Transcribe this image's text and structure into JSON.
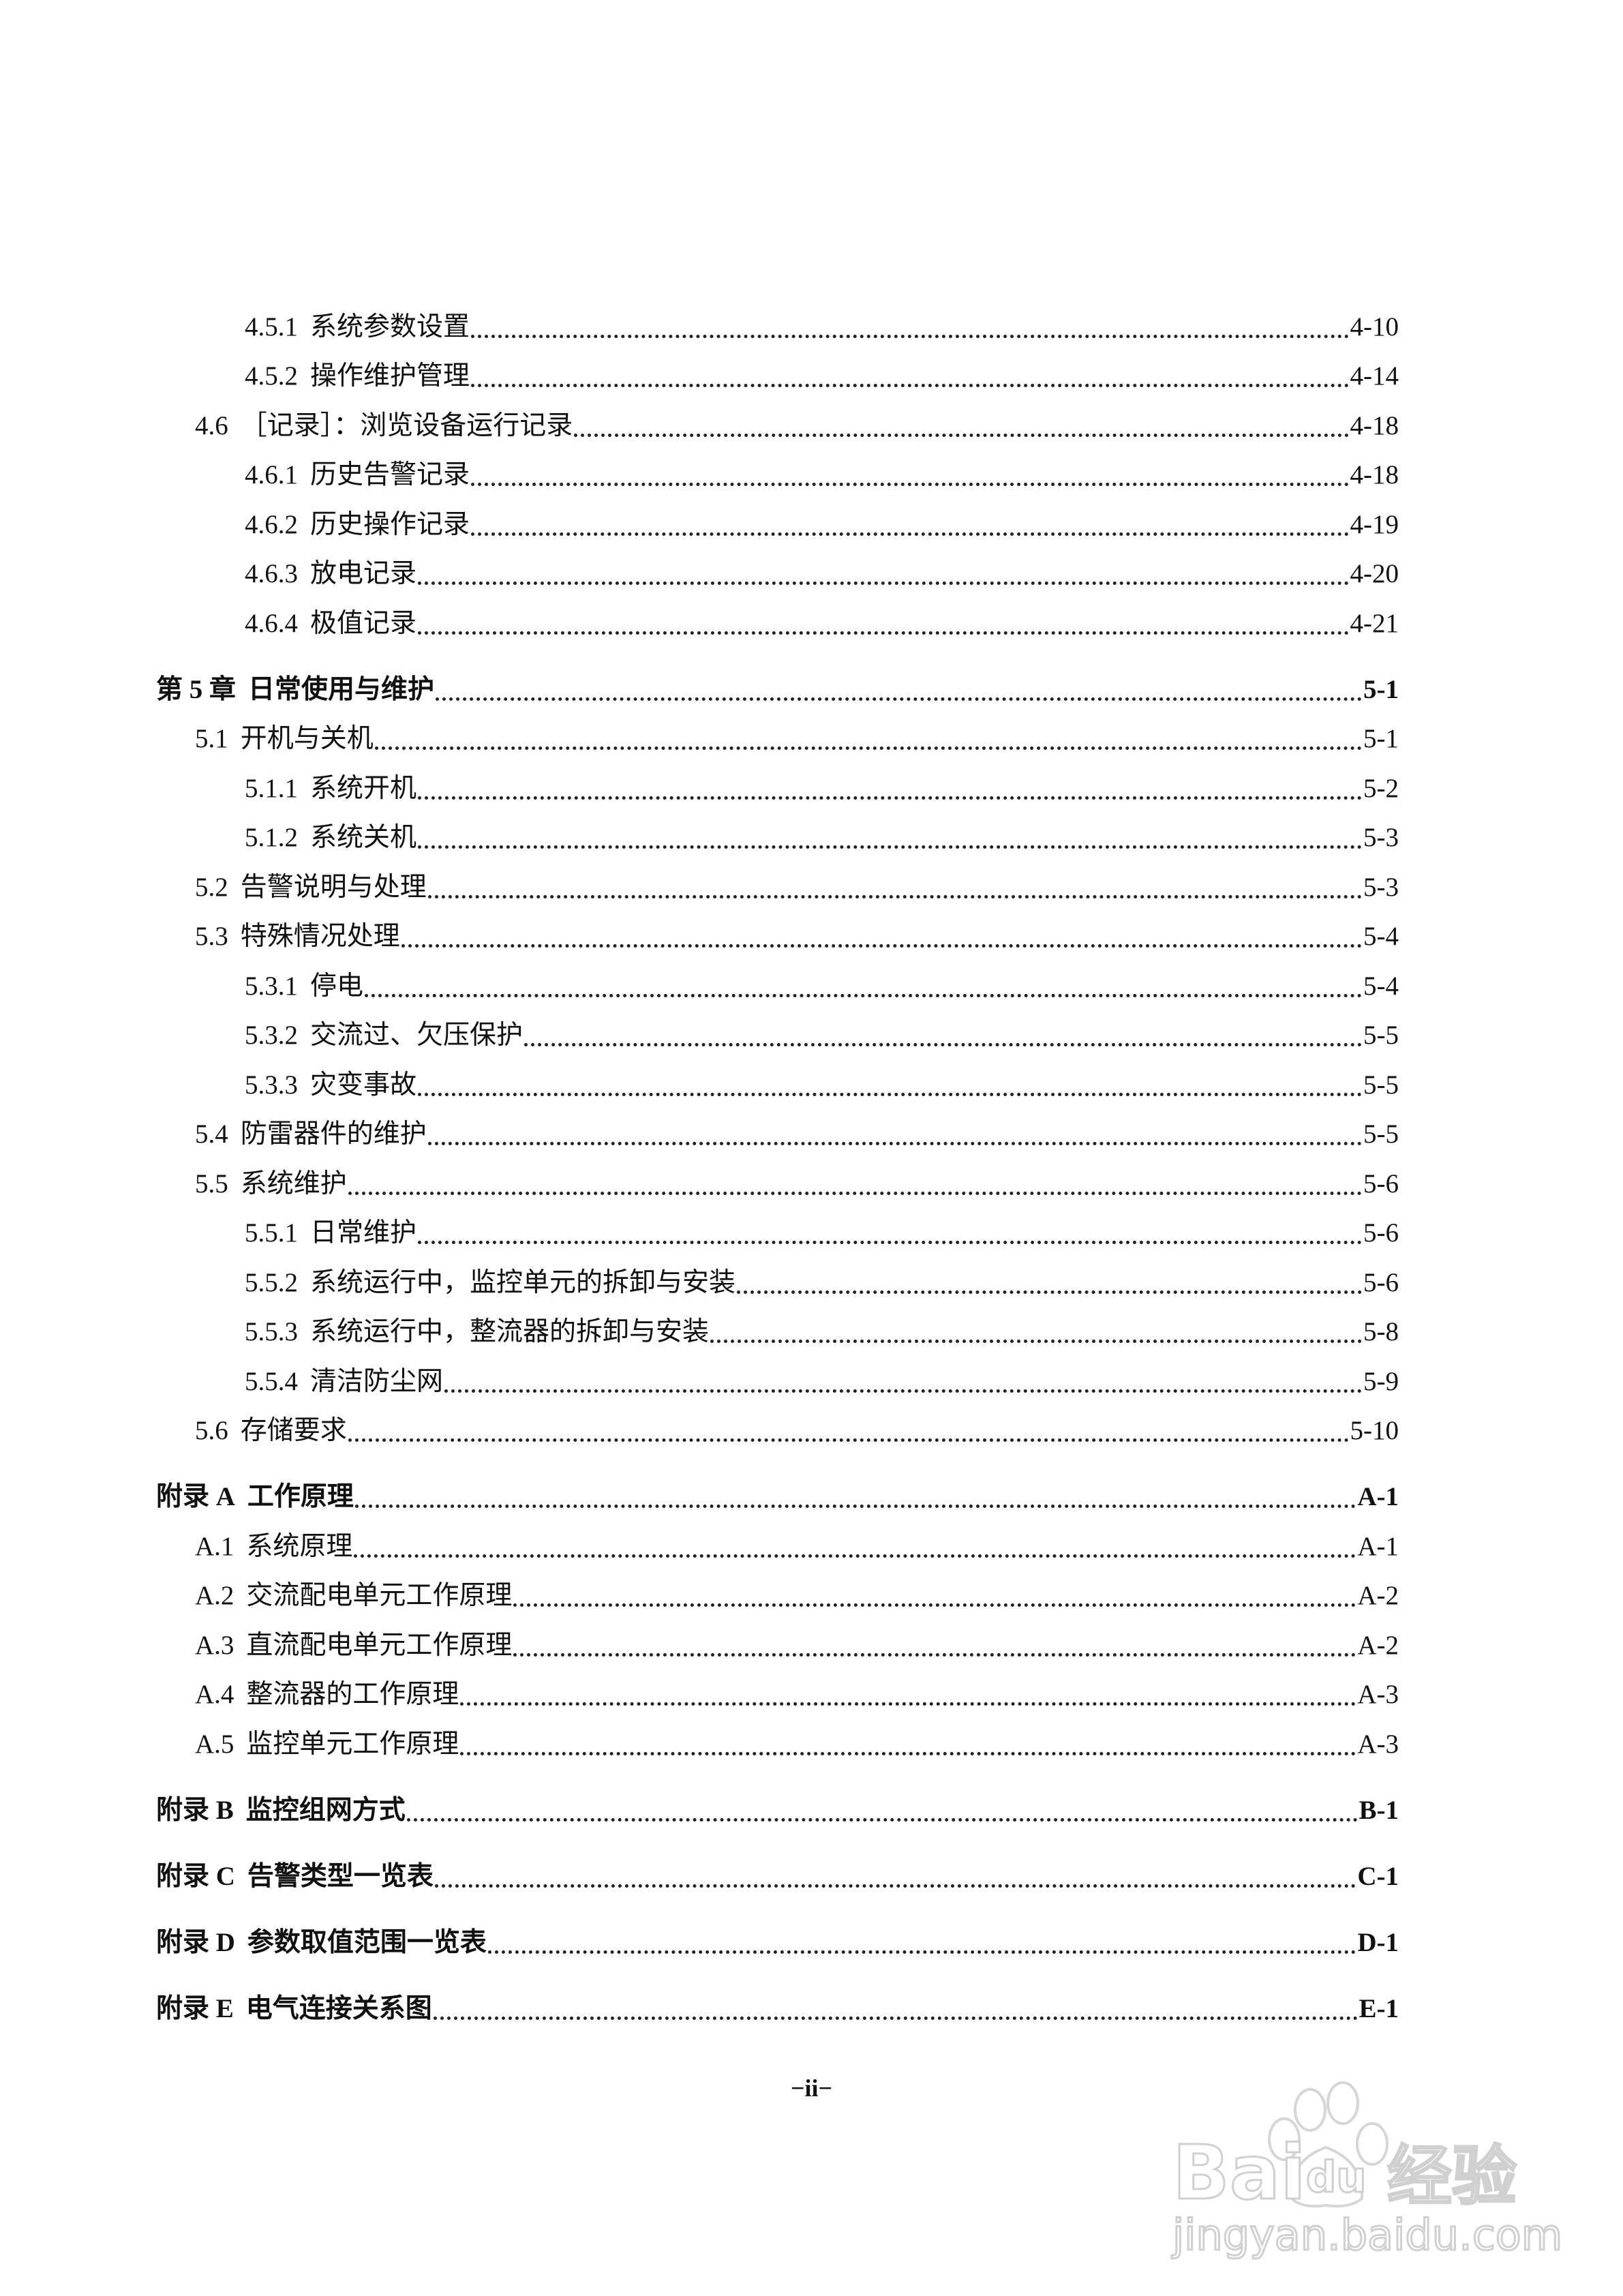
{
  "toc": [
    {
      "level": 3,
      "num": "4.5.1",
      "title": "系统参数设置",
      "page": "4-10"
    },
    {
      "level": 3,
      "num": "4.5.2",
      "title": "操作维护管理",
      "page": "4-14"
    },
    {
      "level": 2,
      "num": "4.6",
      "title": "［记录］：浏览设备运行记录",
      "page": "4-18"
    },
    {
      "level": 3,
      "num": "4.6.1",
      "title": "历史告警记录",
      "page": "4-18"
    },
    {
      "level": 3,
      "num": "4.6.2",
      "title": "历史操作记录",
      "page": "4-19"
    },
    {
      "level": 3,
      "num": "4.6.3",
      "title": "放电记录",
      "page": "4-20"
    },
    {
      "level": 3,
      "num": "4.6.4",
      "title": "极值记录",
      "page": "4-21"
    },
    {
      "level": 1,
      "num": "第 5 章",
      "title": "日常使用与维护",
      "page": "5-1"
    },
    {
      "level": 2,
      "num": "5.1",
      "title": "开机与关机",
      "page": "5-1"
    },
    {
      "level": 3,
      "num": "5.1.1",
      "title": "系统开机",
      "page": "5-2"
    },
    {
      "level": 3,
      "num": "5.1.2",
      "title": "系统关机",
      "page": "5-3"
    },
    {
      "level": 2,
      "num": "5.2",
      "title": "告警说明与处理",
      "page": "5-3"
    },
    {
      "level": 2,
      "num": "5.3",
      "title": "特殊情况处理",
      "page": "5-4"
    },
    {
      "level": 3,
      "num": "5.3.1",
      "title": "停电",
      "page": "5-4"
    },
    {
      "level": 3,
      "num": "5.3.2",
      "title": "交流过、欠压保护",
      "page": "5-5"
    },
    {
      "level": 3,
      "num": "5.3.3",
      "title": "灾变事故",
      "page": "5-5"
    },
    {
      "level": 2,
      "num": "5.4",
      "title": "防雷器件的维护",
      "page": "5-5"
    },
    {
      "level": 2,
      "num": "5.5",
      "title": "系统维护",
      "page": "5-6"
    },
    {
      "level": 3,
      "num": "5.5.1",
      "title": "日常维护",
      "page": "5-6"
    },
    {
      "level": 3,
      "num": "5.5.2",
      "title": "系统运行中，监控单元的拆卸与安装",
      "page": "5-6"
    },
    {
      "level": 3,
      "num": "5.5.3",
      "title": "系统运行中，整流器的拆卸与安装",
      "page": "5-8"
    },
    {
      "level": 3,
      "num": "5.5.4",
      "title": "清洁防尘网",
      "page": "5-9"
    },
    {
      "level": 2,
      "num": "5.6",
      "title": "存储要求",
      "page": "5-10"
    },
    {
      "level": 1,
      "num": "附录 A",
      "title": "工作原理",
      "page": "A-1"
    },
    {
      "level": 2,
      "num": "A.1",
      "title": "系统原理",
      "page": "A-1"
    },
    {
      "level": 2,
      "num": "A.2",
      "title": "交流配电单元工作原理",
      "page": "A-2"
    },
    {
      "level": 2,
      "num": "A.3",
      "title": "直流配电单元工作原理",
      "page": "A-2"
    },
    {
      "level": 2,
      "num": "A.4",
      "title": "整流器的工作原理",
      "page": "A-3"
    },
    {
      "level": 2,
      "num": "A.5",
      "title": "监控单元工作原理",
      "page": "A-3"
    },
    {
      "level": 1,
      "num": "附录 B",
      "title": "监控组网方式",
      "page": "B-1"
    },
    {
      "level": 1,
      "num": "附录 C",
      "title": "告警类型一览表",
      "page": "C-1"
    },
    {
      "level": 1,
      "num": "附录 D",
      "title": "参数取值范围一览表",
      "page": "D-1"
    },
    {
      "level": 1,
      "num": "附录 E",
      "title": "电气连接关系图",
      "page": "E-1"
    }
  ],
  "page_number": "−ii−",
  "watermark": {
    "logo_text": "Baidu经验",
    "url_text": "jingyan.baidu.com",
    "color": "#d8d8d8"
  }
}
